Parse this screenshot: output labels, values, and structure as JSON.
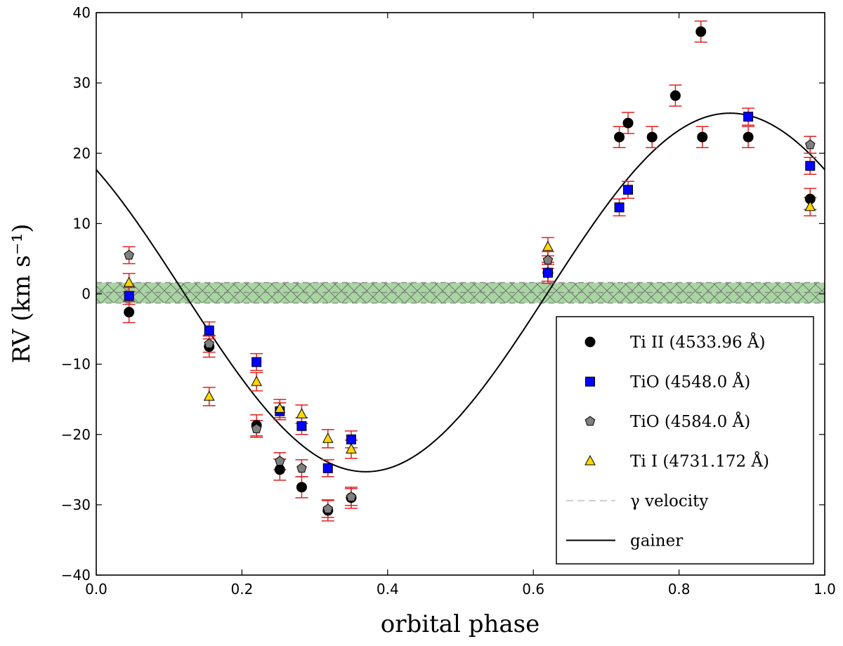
{
  "chart_data": {
    "type": "scatter",
    "xlabel": "orbital phase",
    "ylabel": "RV (km s⁻¹)",
    "xlim": [
      0.0,
      1.0
    ],
    "ylim": [
      -40,
      40
    ],
    "xticks": [
      "0.0",
      "0.2",
      "0.4",
      "0.6",
      "0.8",
      "1.0"
    ],
    "yticks": [
      "−40",
      "−30",
      "−20",
      "−10",
      "0",
      "10",
      "20",
      "30",
      "40"
    ],
    "grid": false,
    "legend_position": "bottom-right",
    "gamma_velocity": {
      "name": "γ velocity",
      "value": 0.2,
      "band": [
        -1.3,
        1.6
      ]
    },
    "model": {
      "name": "gainer",
      "offset": 0.2,
      "amplitude": 25.5,
      "zero_phase": 0.12
    },
    "series": [
      {
        "name": "Ti II (4533.96 Å)",
        "marker": "circle",
        "color": "#000000",
        "x": [
          0.045,
          0.155,
          0.22,
          0.252,
          0.282,
          0.318,
          0.35,
          0.62,
          0.718,
          0.73,
          0.763,
          0.795,
          0.83,
          0.832,
          0.895,
          0.98
        ],
        "y": [
          -2.6,
          -7.5,
          -18.7,
          -25.0,
          -27.5,
          -30.8,
          -29.0,
          3.0,
          22.3,
          24.3,
          22.3,
          28.2,
          37.3,
          22.3,
          22.3,
          13.5
        ],
        "err": [
          1.5,
          1.5,
          1.5,
          1.5,
          1.5,
          1.5,
          1.5,
          1.5,
          1.5,
          1.5,
          1.5,
          1.5,
          1.5,
          1.5,
          1.5,
          1.5
        ]
      },
      {
        "name": "TiO (4548.0 Å)",
        "marker": "square",
        "color": "#0000ff",
        "x": [
          0.045,
          0.155,
          0.22,
          0.252,
          0.282,
          0.318,
          0.35,
          0.62,
          0.718,
          0.73,
          0.895,
          0.98
        ],
        "y": [
          -0.3,
          -5.2,
          -9.7,
          -16.7,
          -18.8,
          -24.8,
          -20.7,
          3.0,
          12.3,
          14.8,
          25.2,
          18.2
        ],
        "err": [
          1.2,
          1.2,
          1.2,
          1.2,
          1.2,
          1.2,
          1.2,
          1.2,
          1.2,
          1.2,
          1.2,
          1.2
        ]
      },
      {
        "name": "TiO (4584.0 Å)",
        "marker": "pentagon",
        "color": "#808080",
        "x": [
          0.045,
          0.155,
          0.22,
          0.252,
          0.282,
          0.318,
          0.35,
          0.62,
          0.98
        ],
        "y": [
          5.5,
          -7.1,
          -19.2,
          -23.8,
          -24.8,
          -30.6,
          -28.9,
          4.8,
          21.2
        ],
        "err": [
          1.2,
          1.2,
          1.2,
          1.2,
          1.2,
          1.2,
          1.2,
          1.2,
          1.2
        ]
      },
      {
        "name": "Ti I (4731.172 Å)",
        "marker": "triangle",
        "color": "#ffd700",
        "x": [
          0.045,
          0.155,
          0.22,
          0.252,
          0.282,
          0.318,
          0.35,
          0.62,
          0.98
        ],
        "y": [
          1.6,
          -14.6,
          -12.5,
          -16.3,
          -17.1,
          -20.6,
          -22.1,
          6.7,
          12.4
        ],
        "err": [
          1.3,
          1.3,
          1.3,
          1.3,
          1.3,
          1.3,
          1.3,
          1.3,
          1.3
        ]
      }
    ]
  }
}
